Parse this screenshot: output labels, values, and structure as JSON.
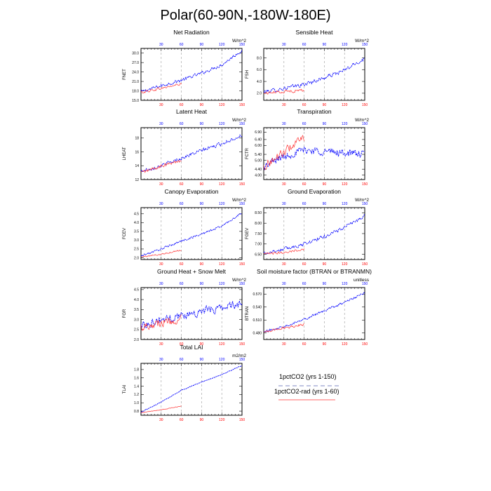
{
  "figure": {
    "title": "Polar(60-90N,-180W-180E)"
  },
  "colors": {
    "series_a": "#0000ff",
    "series_b": "#ff3333",
    "gridline": "#999999",
    "legend_line_a": "#aab0d8",
    "legend_line_b": "#ff6666"
  },
  "legend": {
    "items": [
      {
        "label": "1pctCO2 (yrs 1-150)",
        "style": "dashed"
      },
      {
        "label": "1pctCO2-rad (yrs 1-60)",
        "style": "solid"
      }
    ]
  },
  "chart_data": [
    {
      "type": "line",
      "title": "Net Radiation",
      "units": "W/m^2",
      "ylabel": "FNET",
      "xlim": [
        0,
        150
      ],
      "ylim": [
        15.0,
        31.5
      ],
      "yticks": [
        15.0,
        18.0,
        21.0,
        24.0,
        27.0,
        30.0
      ],
      "ytick_labels": [
        "15.0",
        "18.0",
        "21.0",
        "24.0",
        "27.0",
        "30.0"
      ],
      "xticks": [
        30,
        60,
        90,
        120,
        150
      ],
      "xtick_labels": [
        "30",
        "60",
        "90",
        "120",
        "150"
      ],
      "series": [
        {
          "x": [
            0,
            30,
            60,
            90,
            120,
            150
          ],
          "values": [
            17.7,
            19.6,
            21.4,
            23.6,
            26.3,
            30.9
          ],
          "noise": 0.7
        },
        {
          "x": [
            0,
            30,
            60
          ],
          "values": [
            17.5,
            18.8,
            20.2
          ],
          "noise": 0.6
        }
      ]
    },
    {
      "type": "line",
      "title": "Sensible Heat",
      "units": "W/m^2",
      "ylabel": "FSH",
      "xlim": [
        0,
        150
      ],
      "ylim": [
        0.8,
        9.6
      ],
      "yticks": [
        2.0,
        4.0,
        6.0,
        8.0
      ],
      "ytick_labels": [
        "2.0",
        "4.0",
        "6.0",
        "8.0"
      ],
      "xticks": [
        30,
        60,
        90,
        120,
        150
      ],
      "xtick_labels": [
        "30",
        "60",
        "90",
        "120",
        "150"
      ],
      "series": [
        {
          "x": [
            0,
            30,
            60,
            90,
            120,
            150
          ],
          "values": [
            2.2,
            2.8,
            3.5,
            4.6,
            5.9,
            7.9
          ],
          "noise": 0.45
        },
        {
          "x": [
            0,
            30,
            60
          ],
          "values": [
            2.0,
            2.3,
            2.5
          ],
          "noise": 0.35
        }
      ]
    },
    {
      "type": "line",
      "title": "Latent Heat",
      "units": "W/m^2",
      "ylabel": "LHEAT",
      "xlim": [
        0,
        150
      ],
      "ylim": [
        12.0,
        19.5
      ],
      "yticks": [
        12,
        14,
        16,
        18
      ],
      "ytick_labels": [
        "12",
        "14",
        "16",
        "18"
      ],
      "xticks": [
        30,
        60,
        90,
        120,
        150
      ],
      "xtick_labels": [
        "30",
        "60",
        "90",
        "120",
        "150"
      ],
      "series": [
        {
          "x": [
            0,
            30,
            60,
            90,
            120,
            150
          ],
          "values": [
            13.2,
            14.0,
            15.1,
            16.2,
            17.2,
            18.4
          ],
          "noise": 0.35
        },
        {
          "x": [
            0,
            30,
            60
          ],
          "values": [
            13.0,
            13.9,
            14.8
          ],
          "noise": 0.35
        }
      ]
    },
    {
      "type": "line",
      "title": "Transpiration",
      "units": "W/m^2",
      "ylabel": "FCTR",
      "xlim": [
        0,
        150
      ],
      "ylim": [
        3.7,
        7.2
      ],
      "yticks": [
        4.0,
        4.4,
        5.0,
        5.4,
        6.0,
        6.4,
        6.9
      ],
      "ytick_labels": [
        "4.00",
        "4.40",
        "5.00",
        "5.40",
        "6.00",
        "6.40",
        "6.90"
      ],
      "xticks": [
        30,
        60,
        90,
        120,
        150
      ],
      "xtick_labels": [
        "30",
        "60",
        "90",
        "120",
        "150"
      ],
      "series": [
        {
          "x": [
            0,
            20,
            40,
            60,
            90,
            120,
            150
          ],
          "values": [
            4.5,
            5.1,
            5.4,
            5.7,
            5.6,
            5.5,
            5.4
          ],
          "noise": 0.35
        },
        {
          "x": [
            0,
            20,
            40,
            60
          ],
          "values": [
            4.6,
            5.2,
            5.9,
            6.5
          ],
          "noise": 0.4
        }
      ]
    },
    {
      "type": "line",
      "title": "Canopy Evaporation",
      "units": "W/m^2",
      "ylabel": "FCEV",
      "xlim": [
        0,
        150
      ],
      "ylim": [
        1.9,
        4.85
      ],
      "yticks": [
        2.0,
        2.5,
        3.0,
        3.5,
        4.0,
        4.5
      ],
      "ytick_labels": [
        "2.0",
        "2.5",
        "3.0",
        "3.5",
        "4.0",
        "4.5"
      ],
      "xticks": [
        30,
        60,
        90,
        120,
        150
      ],
      "xtick_labels": [
        "30",
        "60",
        "90",
        "120",
        "150"
      ],
      "series": [
        {
          "x": [
            0,
            30,
            60,
            90,
            120,
            150
          ],
          "values": [
            2.1,
            2.5,
            2.95,
            3.35,
            3.8,
            4.55
          ],
          "noise": 0.08
        },
        {
          "x": [
            0,
            30,
            60
          ],
          "values": [
            2.05,
            2.2,
            2.45
          ],
          "noise": 0.06
        }
      ]
    },
    {
      "type": "line",
      "title": "Ground Evaporation",
      "units": "W/m^2",
      "ylabel": "FGEV",
      "xlim": [
        0,
        150
      ],
      "ylim": [
        6.25,
        8.75
      ],
      "yticks": [
        6.5,
        7.0,
        7.5,
        8.0,
        8.5
      ],
      "ytick_labels": [
        "6.50",
        "7.00",
        "7.50",
        "8.00",
        "8.50"
      ],
      "xticks": [
        30,
        60,
        90,
        120,
        150
      ],
      "xtick_labels": [
        "30",
        "60",
        "90",
        "120",
        "150"
      ],
      "series": [
        {
          "x": [
            0,
            30,
            60,
            90,
            120,
            150
          ],
          "values": [
            6.55,
            6.75,
            7.0,
            7.35,
            7.8,
            8.35
          ],
          "noise": 0.12
        },
        {
          "x": [
            0,
            30,
            60
          ],
          "values": [
            6.5,
            6.6,
            6.75
          ],
          "noise": 0.08
        }
      ]
    },
    {
      "type": "line",
      "title": "Ground Heat + Snow Melt",
      "units": "W/m^2",
      "ylabel": "FGR",
      "xlim": [
        0,
        150
      ],
      "ylim": [
        2.0,
        4.6
      ],
      "yticks": [
        2.0,
        2.5,
        3.0,
        3.5,
        4.0,
        4.5
      ],
      "ytick_labels": [
        "2.0",
        "2.5",
        "3.0",
        "3.5",
        "4.0",
        "4.5"
      ],
      "xticks": [
        30,
        60,
        90,
        120,
        150
      ],
      "xtick_labels": [
        "30",
        "60",
        "90",
        "120",
        "150"
      ],
      "series": [
        {
          "x": [
            0,
            30,
            60,
            90,
            120,
            150
          ],
          "values": [
            2.7,
            3.0,
            3.2,
            3.4,
            3.6,
            3.85
          ],
          "noise": 0.28
        },
        {
          "x": [
            0,
            30,
            60
          ],
          "values": [
            2.65,
            2.85,
            3.0
          ],
          "noise": 0.3
        }
      ]
    },
    {
      "type": "line",
      "title": "Soil moisture factor (BTRAN or BTRANMN)",
      "units": "unitless",
      "ylabel": "BTRAN",
      "xlim": [
        0,
        150
      ],
      "ylim": [
        0.465,
        0.585
      ],
      "yticks": [
        0.48,
        0.51,
        0.54,
        0.57
      ],
      "ytick_labels": [
        "0.480",
        "0.510",
        "0.540",
        "0.570"
      ],
      "xticks": [
        30,
        60,
        90,
        120,
        150
      ],
      "xtick_labels": [
        "30",
        "60",
        "90",
        "120",
        "150"
      ],
      "series": [
        {
          "x": [
            0,
            30,
            60,
            90,
            120,
            150
          ],
          "values": [
            0.482,
            0.496,
            0.512,
            0.531,
            0.551,
            0.572
          ],
          "noise": 0.004
        },
        {
          "x": [
            0,
            30,
            60
          ],
          "values": [
            0.482,
            0.492,
            0.5
          ],
          "noise": 0.004
        }
      ]
    },
    {
      "type": "line",
      "title": "Total LAI",
      "units": "m2/m2",
      "ylabel": "TLAI",
      "xlim": [
        0,
        150
      ],
      "ylim": [
        0.7,
        1.95
      ],
      "yticks": [
        0.8,
        1.0,
        1.2,
        1.4,
        1.6,
        1.8
      ],
      "ytick_labels": [
        "0.8",
        "1.0",
        "1.2",
        "1.4",
        "1.6",
        "1.8"
      ],
      "xticks": [
        30,
        60,
        90,
        120,
        150
      ],
      "xtick_labels": [
        "30",
        "60",
        "90",
        "120",
        "150"
      ],
      "series": [
        {
          "x": [
            0,
            30,
            60,
            90,
            120,
            150
          ],
          "values": [
            0.77,
            1.02,
            1.3,
            1.5,
            1.68,
            1.9
          ],
          "noise": 0.012
        },
        {
          "x": [
            0,
            30,
            60
          ],
          "values": [
            0.76,
            0.83,
            0.92
          ],
          "noise": 0.01
        }
      ]
    }
  ]
}
